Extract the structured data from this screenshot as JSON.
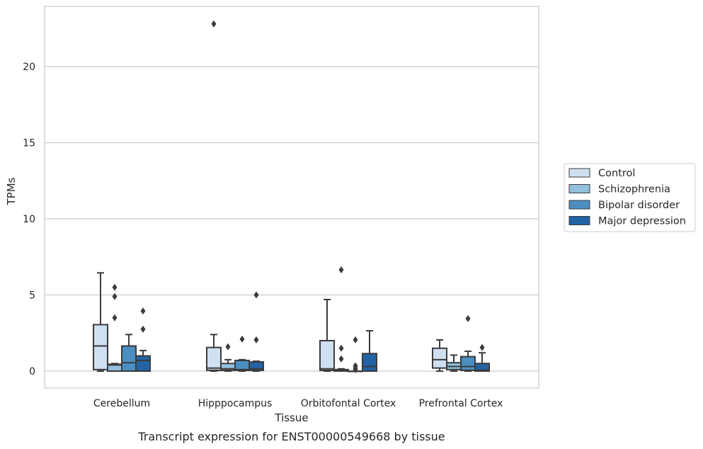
{
  "caption": "Transcript expression for ENST00000549668 by tissue",
  "chart_data": {
    "type": "box",
    "xlabel": "Tissue",
    "ylabel": "TPMs",
    "ylim": [
      -1.1,
      24
    ],
    "yticks": [
      0,
      5,
      10,
      15,
      20
    ],
    "grid": "horizontal",
    "legend_position": "right",
    "categories": [
      "Cerebellum",
      "Hipppocampus",
      "Orbitofontal Cortex",
      "Prefrontal Cortex"
    ],
    "series": [
      {
        "name": "Control",
        "color": "#cfe0f1",
        "boxes": [
          {
            "min": 0.0,
            "q1": 0.1,
            "median": 1.65,
            "q3": 3.05,
            "max": 6.45,
            "outliers": []
          },
          {
            "min": 0.0,
            "q1": 0.05,
            "median": 0.2,
            "q3": 1.55,
            "max": 2.4,
            "outliers": [
              22.8
            ]
          },
          {
            "min": 0.0,
            "q1": 0.05,
            "median": 0.15,
            "q3": 2.0,
            "max": 4.7,
            "outliers": []
          },
          {
            "min": 0.0,
            "q1": 0.2,
            "median": 0.75,
            "q3": 1.5,
            "max": 2.05,
            "outliers": []
          }
        ]
      },
      {
        "name": "Schizophrenia",
        "color": "#92c0df",
        "boxes": [
          {
            "min": 0.0,
            "q1": 0.0,
            "median": 0.4,
            "q3": 0.45,
            "max": 0.5,
            "outliers": [
              5.5,
              4.9,
              3.5
            ]
          },
          {
            "min": 0.0,
            "q1": 0.05,
            "median": 0.15,
            "q3": 0.5,
            "max": 0.75,
            "outliers": [
              1.6
            ]
          },
          {
            "min": 0.0,
            "q1": 0.0,
            "median": 0.05,
            "q3": 0.1,
            "max": 0.15,
            "outliers": [
              6.65,
              1.5,
              0.8
            ]
          },
          {
            "min": 0.0,
            "q1": 0.1,
            "median": 0.3,
            "q3": 0.55,
            "max": 1.05,
            "outliers": []
          }
        ]
      },
      {
        "name": "Bipolar disorder",
        "color": "#4b8fc2",
        "boxes": [
          {
            "min": 0.0,
            "q1": 0.0,
            "median": 0.55,
            "q3": 1.65,
            "max": 2.4,
            "outliers": []
          },
          {
            "min": 0.0,
            "q1": 0.05,
            "median": 0.1,
            "q3": 0.7,
            "max": 0.75,
            "outliers": [
              2.1
            ]
          },
          {
            "min": 0.0,
            "q1": 0.0,
            "median": 0.0,
            "q3": 0.0,
            "max": 0.0,
            "outliers": [
              2.05,
              0.35,
              0.2,
              0.1
            ]
          },
          {
            "min": 0.0,
            "q1": 0.05,
            "median": 0.3,
            "q3": 0.95,
            "max": 1.3,
            "outliers": [
              3.45
            ]
          }
        ]
      },
      {
        "name": "Major depression",
        "color": "#2263a5",
        "boxes": [
          {
            "min": 0.0,
            "q1": 0.0,
            "median": 0.7,
            "q3": 1.0,
            "max": 1.35,
            "outliers": [
              3.95,
              2.75
            ]
          },
          {
            "min": 0.0,
            "q1": 0.05,
            "median": 0.15,
            "q3": 0.6,
            "max": 0.65,
            "outliers": [
              5.0,
              2.05
            ]
          },
          {
            "min": 0.0,
            "q1": 0.0,
            "median": 0.3,
            "q3": 1.15,
            "max": 2.65,
            "outliers": []
          },
          {
            "min": 0.0,
            "q1": 0.0,
            "median": 0.05,
            "q3": 0.5,
            "max": 1.2,
            "outliers": [
              1.55
            ]
          }
        ]
      }
    ]
  }
}
